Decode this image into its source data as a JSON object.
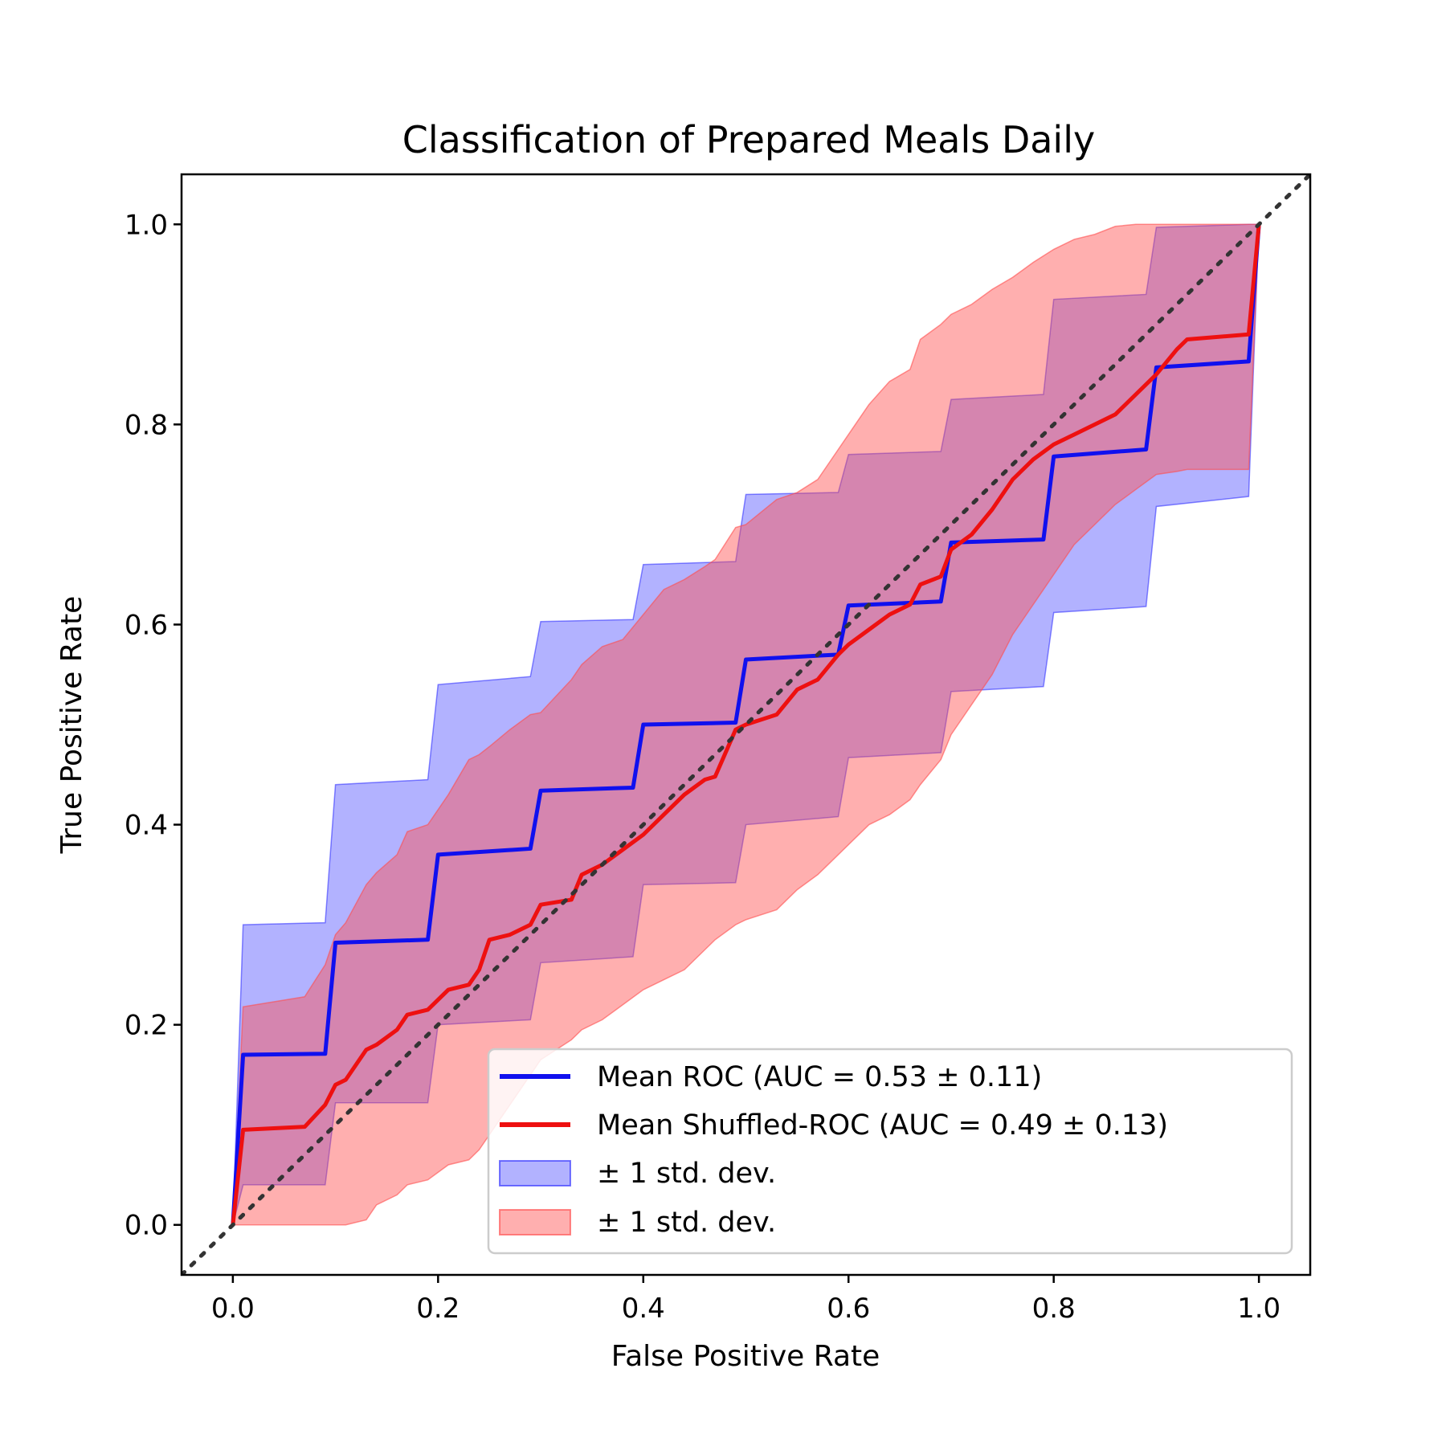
{
  "chart_data": {
    "type": "line",
    "title": "Classification of Prepared Meals Daily",
    "xlabel": "False Positive Rate",
    "ylabel": "True Positive Rate",
    "xlim": [
      -0.05,
      1.05
    ],
    "ylim": [
      -0.05,
      1.05
    ],
    "xticks": [
      "0.0",
      "0.2",
      "0.4",
      "0.6",
      "0.8",
      "1.0"
    ],
    "yticks": [
      "0.0",
      "0.2",
      "0.4",
      "0.6",
      "0.8",
      "1.0"
    ],
    "grid": false,
    "legend_position": "lower-right",
    "chance_line": {
      "x": [
        -0.05,
        1.05
      ],
      "y": [
        -0.05,
        1.05
      ],
      "color": "#333333",
      "style": "dotted"
    },
    "series": [
      {
        "name": "Mean ROC (AUC = 0.53 ± 0.11)",
        "color": "#1010ee",
        "x": [
          0.0,
          0.01,
          0.09,
          0.1,
          0.19,
          0.2,
          0.29,
          0.3,
          0.39,
          0.4,
          0.49,
          0.5,
          0.59,
          0.6,
          0.69,
          0.7,
          0.79,
          0.8,
          0.89,
          0.9,
          0.99,
          1.0
        ],
        "y": [
          0.0,
          0.17,
          0.171,
          0.282,
          0.285,
          0.37,
          0.376,
          0.434,
          0.437,
          0.5,
          0.502,
          0.565,
          0.57,
          0.619,
          0.623,
          0.682,
          0.685,
          0.768,
          0.775,
          0.857,
          0.863,
          1.0
        ]
      },
      {
        "name": "Mean Shuffled-ROC (AUC = 0.49 ± 0.13)",
        "color": "#ee1010",
        "x": [
          0.0,
          0.01,
          0.07,
          0.09,
          0.1,
          0.11,
          0.13,
          0.14,
          0.16,
          0.17,
          0.19,
          0.21,
          0.23,
          0.24,
          0.25,
          0.27,
          0.29,
          0.3,
          0.33,
          0.34,
          0.36,
          0.38,
          0.4,
          0.42,
          0.44,
          0.46,
          0.47,
          0.49,
          0.5,
          0.53,
          0.55,
          0.57,
          0.59,
          0.6,
          0.62,
          0.64,
          0.66,
          0.67,
          0.69,
          0.7,
          0.72,
          0.74,
          0.76,
          0.78,
          0.8,
          0.82,
          0.84,
          0.86,
          0.88,
          0.9,
          0.92,
          0.93,
          0.99,
          1.0
        ],
        "y": [
          0.0,
          0.095,
          0.098,
          0.12,
          0.14,
          0.145,
          0.175,
          0.18,
          0.195,
          0.21,
          0.215,
          0.235,
          0.24,
          0.255,
          0.285,
          0.29,
          0.3,
          0.32,
          0.325,
          0.35,
          0.36,
          0.375,
          0.39,
          0.41,
          0.43,
          0.445,
          0.448,
          0.495,
          0.5,
          0.51,
          0.535,
          0.545,
          0.57,
          0.58,
          0.595,
          0.61,
          0.62,
          0.64,
          0.648,
          0.675,
          0.69,
          0.715,
          0.745,
          0.765,
          0.78,
          0.79,
          0.8,
          0.81,
          0.83,
          0.85,
          0.875,
          0.885,
          0.89,
          1.0
        ]
      }
    ],
    "bands": [
      {
        "name": "± 1 std. dev.",
        "color": "#0000ff",
        "opacity": 0.3,
        "x": [
          0.0,
          0.01,
          0.09,
          0.1,
          0.19,
          0.2,
          0.29,
          0.3,
          0.39,
          0.4,
          0.49,
          0.5,
          0.59,
          0.6,
          0.69,
          0.7,
          0.79,
          0.8,
          0.89,
          0.9,
          0.99,
          1.0
        ],
        "upper": [
          0.0,
          0.3,
          0.302,
          0.44,
          0.445,
          0.54,
          0.548,
          0.603,
          0.605,
          0.66,
          0.663,
          0.73,
          0.732,
          0.77,
          0.773,
          0.825,
          0.83,
          0.925,
          0.93,
          0.997,
          1.0,
          1.0
        ],
        "lower": [
          0.0,
          0.04,
          0.04,
          0.122,
          0.122,
          0.2,
          0.205,
          0.262,
          0.268,
          0.34,
          0.342,
          0.4,
          0.408,
          0.467,
          0.472,
          0.533,
          0.538,
          0.612,
          0.618,
          0.718,
          0.728,
          1.0
        ]
      },
      {
        "name": "± 1 std. dev.",
        "color": "#ff4d4d",
        "opacity": 0.45,
        "x": [
          0.0,
          0.01,
          0.07,
          0.09,
          0.1,
          0.11,
          0.13,
          0.14,
          0.16,
          0.17,
          0.19,
          0.21,
          0.23,
          0.24,
          0.25,
          0.27,
          0.29,
          0.3,
          0.33,
          0.34,
          0.36,
          0.38,
          0.4,
          0.42,
          0.44,
          0.46,
          0.47,
          0.49,
          0.5,
          0.53,
          0.55,
          0.57,
          0.59,
          0.6,
          0.62,
          0.64,
          0.66,
          0.67,
          0.69,
          0.7,
          0.72,
          0.74,
          0.76,
          0.78,
          0.8,
          0.82,
          0.84,
          0.86,
          0.88,
          0.9,
          0.92,
          0.93,
          0.99,
          1.0
        ],
        "upper": [
          0.0,
          0.218,
          0.228,
          0.26,
          0.29,
          0.302,
          0.34,
          0.352,
          0.37,
          0.393,
          0.4,
          0.43,
          0.465,
          0.47,
          0.478,
          0.495,
          0.51,
          0.512,
          0.545,
          0.56,
          0.578,
          0.585,
          0.61,
          0.635,
          0.645,
          0.658,
          0.665,
          0.697,
          0.7,
          0.725,
          0.732,
          0.745,
          0.775,
          0.79,
          0.82,
          0.843,
          0.855,
          0.885,
          0.9,
          0.91,
          0.92,
          0.935,
          0.947,
          0.962,
          0.975,
          0.985,
          0.99,
          0.998,
          1.0,
          1.0,
          1.0,
          1.0,
          1.0,
          1.0
        ],
        "lower": [
          0.0,
          0.0,
          0.0,
          0.0,
          0.0,
          0.0,
          0.005,
          0.02,
          0.03,
          0.04,
          0.045,
          0.06,
          0.065,
          0.075,
          0.09,
          0.12,
          0.15,
          0.165,
          0.185,
          0.195,
          0.205,
          0.22,
          0.235,
          0.245,
          0.255,
          0.275,
          0.285,
          0.3,
          0.305,
          0.315,
          0.335,
          0.35,
          0.37,
          0.38,
          0.4,
          0.41,
          0.425,
          0.44,
          0.465,
          0.49,
          0.52,
          0.55,
          0.59,
          0.62,
          0.65,
          0.68,
          0.7,
          0.72,
          0.735,
          0.75,
          0.753,
          0.755,
          0.755,
          1.0
        ]
      }
    ]
  }
}
